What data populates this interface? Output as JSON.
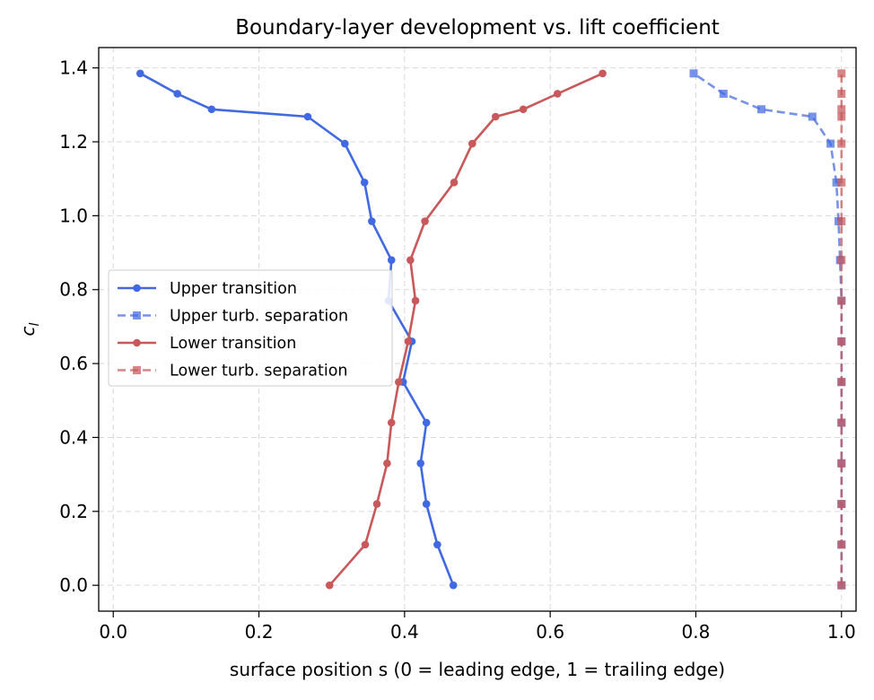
{
  "chart_data": {
    "type": "line",
    "title": "Boundary-layer development vs. lift coefficient",
    "xlabel": "surface position s (0 = leading edge, 1 = trailing edge)",
    "ylabel": "c",
    "ylabel_subscript": "l",
    "xlim": [
      -0.02,
      1.02
    ],
    "ylim": [
      -0.07,
      1.455
    ],
    "xticks": [
      0.0,
      0.2,
      0.4,
      0.6,
      0.8,
      1.0
    ],
    "xtick_labels": [
      "0.0",
      "0.2",
      "0.4",
      "0.6",
      "0.8",
      "1.0"
    ],
    "yticks": [
      0.0,
      0.2,
      0.4,
      0.6,
      0.8,
      1.0,
      1.2,
      1.4
    ],
    "ytick_labels": [
      "0.0",
      "0.2",
      "0.4",
      "0.6",
      "0.8",
      "1.0",
      "1.2",
      "1.4"
    ],
    "grid": true,
    "legend_placement": "center-left",
    "series": [
      {
        "name": "Upper transition",
        "color": "#4169e1",
        "linestyle": "solid",
        "marker": "circle",
        "points": [
          [
            0.467,
            0.0
          ],
          [
            0.445,
            0.11
          ],
          [
            0.43,
            0.22
          ],
          [
            0.422,
            0.33
          ],
          [
            0.43,
            0.44
          ],
          [
            0.398,
            0.55
          ],
          [
            0.41,
            0.66
          ],
          [
            0.378,
            0.77
          ],
          [
            0.382,
            0.88
          ],
          [
            0.355,
            0.985
          ],
          [
            0.345,
            1.09
          ],
          [
            0.318,
            1.195
          ],
          [
            0.267,
            1.268
          ],
          [
            0.135,
            1.288
          ],
          [
            0.088,
            1.33
          ],
          [
            0.037,
            1.385
          ]
        ]
      },
      {
        "name": "Upper turb. separation",
        "color": "#4169e1",
        "linestyle": "dashed",
        "marker": "square",
        "points": [
          [
            1.0,
            0.0
          ],
          [
            1.0,
            0.11
          ],
          [
            1.0,
            0.22
          ],
          [
            1.0,
            0.33
          ],
          [
            1.0,
            0.44
          ],
          [
            1.0,
            0.55
          ],
          [
            1.0,
            0.66
          ],
          [
            1.0,
            0.77
          ],
          [
            0.998,
            0.88
          ],
          [
            0.996,
            0.985
          ],
          [
            0.993,
            1.09
          ],
          [
            0.985,
            1.195
          ],
          [
            0.96,
            1.268
          ],
          [
            0.89,
            1.288
          ],
          [
            0.838,
            1.33
          ],
          [
            0.797,
            1.385
          ]
        ]
      },
      {
        "name": "Lower transition",
        "color": "#c8585a",
        "linestyle": "solid",
        "marker": "circle",
        "points": [
          [
            0.297,
            0.0
          ],
          [
            0.346,
            0.11
          ],
          [
            0.362,
            0.22
          ],
          [
            0.376,
            0.33
          ],
          [
            0.382,
            0.44
          ],
          [
            0.392,
            0.55
          ],
          [
            0.405,
            0.66
          ],
          [
            0.415,
            0.77
          ],
          [
            0.408,
            0.88
          ],
          [
            0.428,
            0.985
          ],
          [
            0.468,
            1.09
          ],
          [
            0.493,
            1.195
          ],
          [
            0.525,
            1.268
          ],
          [
            0.563,
            1.288
          ],
          [
            0.61,
            1.33
          ],
          [
            0.672,
            1.385
          ]
        ]
      },
      {
        "name": "Lower turb. separation",
        "color": "#c8585a",
        "linestyle": "dashed",
        "marker": "square",
        "points": [
          [
            1.0,
            0.0
          ],
          [
            1.0,
            0.11
          ],
          [
            1.0,
            0.22
          ],
          [
            1.0,
            0.33
          ],
          [
            1.0,
            0.44
          ],
          [
            1.0,
            0.55
          ],
          [
            1.0,
            0.66
          ],
          [
            1.0,
            0.77
          ],
          [
            1.0,
            0.88
          ],
          [
            1.0,
            0.985
          ],
          [
            1.0,
            1.09
          ],
          [
            1.0,
            1.195
          ],
          [
            1.0,
            1.268
          ],
          [
            1.0,
            1.288
          ],
          [
            1.0,
            1.33
          ],
          [
            1.0,
            1.385
          ]
        ]
      }
    ]
  }
}
